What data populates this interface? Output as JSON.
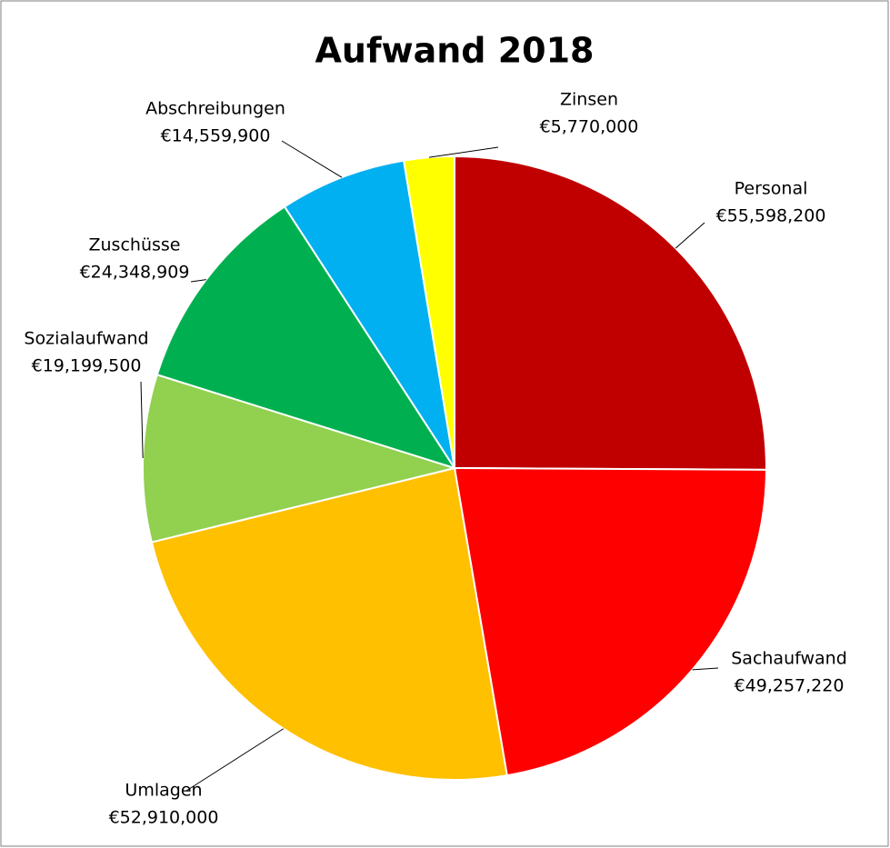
{
  "chart_data": {
    "type": "pie",
    "title": "Aufwand 2018",
    "categories": [
      "Personal",
      "Sachaufwand",
      "Umlagen",
      "Sozialaufwand",
      "Zuschüsse",
      "Abschreibungen",
      "Zinsen"
    ],
    "values": [
      55598200,
      49257220,
      52910000,
      19199500,
      24348909,
      14559900,
      5770000
    ],
    "value_labels": [
      "€55,598,200",
      "€49,257,220",
      "€52,910,000",
      "€19,199,500",
      "€24,348,909",
      "€14,559,900",
      "€5,770,000"
    ],
    "colors": [
      "#c00000",
      "#ff0000",
      "#ffc000",
      "#92d050",
      "#00b050",
      "#00b0f0",
      "#ffff00"
    ]
  }
}
